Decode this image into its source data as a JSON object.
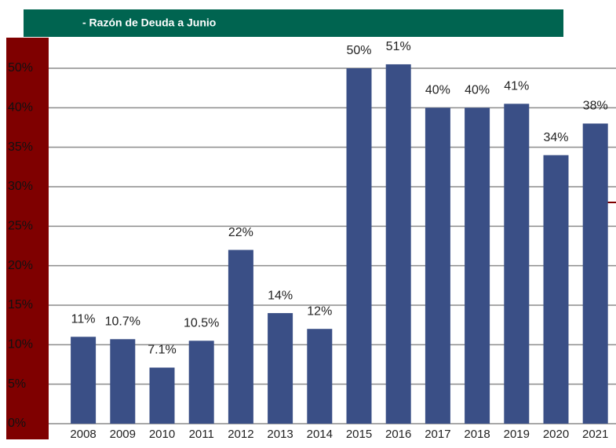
{
  "chart_data": {
    "type": "bar",
    "title": "- Razón de Deuda  a  Junio",
    "categories": [
      "2008",
      "2009",
      "2010",
      "2011",
      "2012",
      "2013",
      "2014",
      "2015",
      "2016",
      "2017",
      "2018",
      "2019",
      "2020",
      "2021"
    ],
    "values": [
      11,
      10.7,
      7.1,
      10.5,
      22,
      14,
      12,
      50,
      51,
      40,
      40,
      41,
      34,
      38
    ],
    "value_labels": [
      "11%",
      "10.7%",
      "7.1%",
      "10.5%",
      "22%",
      "14%",
      "12%",
      "50%",
      "51%",
      "40%",
      "40%",
      "41%",
      "34%",
      "38%"
    ],
    "color": "#3a4f86",
    "ylim": [
      0,
      50
    ],
    "yticks": [
      {
        "value": 0,
        "label": "0%"
      },
      {
        "value": 5,
        "label": "5%"
      },
      {
        "value": 10,
        "label": "10%"
      },
      {
        "value": 15,
        "label": "15%"
      },
      {
        "value": 20,
        "label": "20%"
      },
      {
        "value": 25,
        "label": "25%"
      },
      {
        "value": 30,
        "label": "30%"
      },
      {
        "value": 35,
        "label": "35%"
      },
      {
        "value": 40,
        "label": "40%"
      },
      {
        "value": 50,
        "label": "50%"
      }
    ],
    "grid": true
  }
}
